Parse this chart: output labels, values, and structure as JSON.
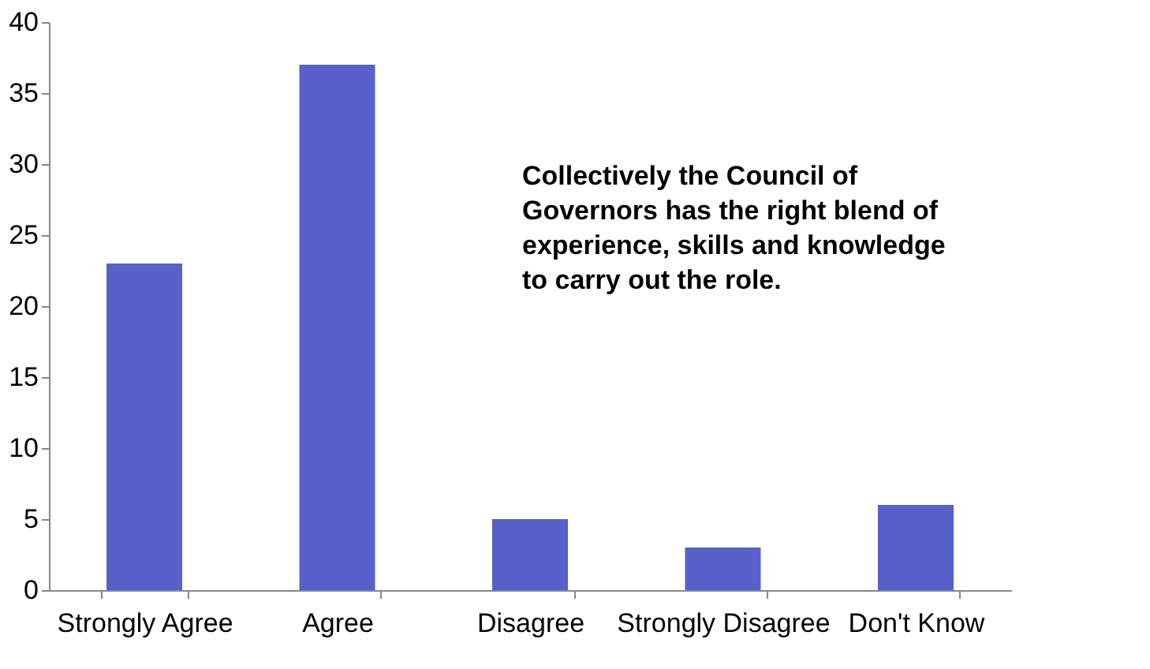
{
  "chart_data": {
    "type": "bar",
    "categories": [
      "Strongly Agree",
      "Agree",
      "Disagree",
      "Strongly Disagree",
      "Don't Know"
    ],
    "values": [
      23,
      37,
      5,
      3,
      6
    ],
    "color": "#5761c9",
    "ylim": [
      0,
      40
    ],
    "yticks": [
      0,
      5,
      10,
      15,
      20,
      25,
      30,
      35,
      40
    ],
    "grid": false,
    "annotations": [
      "Collectively the Council of Governors has the right blend of experience, skills and knowledge to carry out the role."
    ]
  }
}
